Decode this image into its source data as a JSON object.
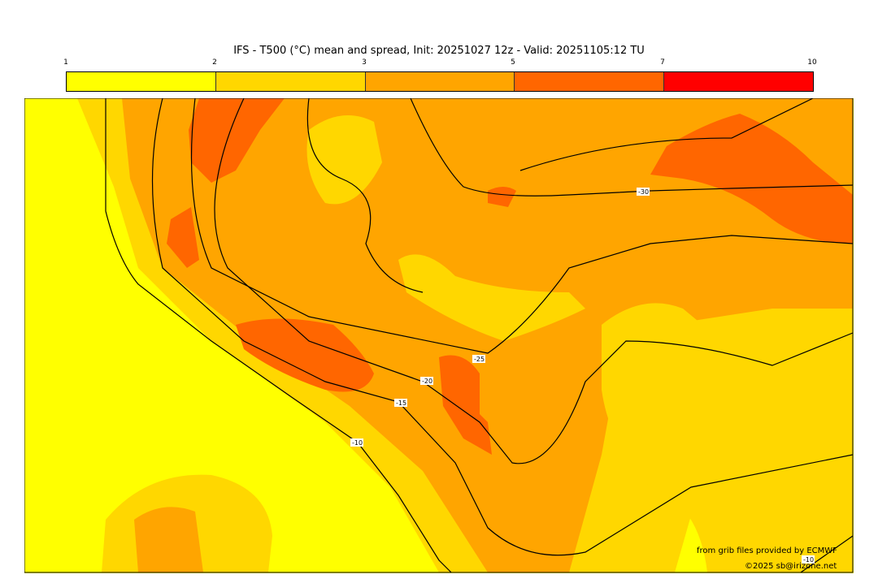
{
  "title": "IFS - T500 (°C) mean and spread, Init: 20251027 12z - Valid: 20251105:12 TU",
  "colorbar": {
    "ticks": [
      "1",
      "2",
      "3",
      "5",
      "7",
      "10"
    ],
    "colors": [
      "#ffff00",
      "#ffd700",
      "#ffa500",
      "#ff6600",
      "#ff0000"
    ]
  },
  "contours": {
    "labels": [
      "-10",
      "-15",
      "-20",
      "-25",
      "-30",
      "-10"
    ]
  },
  "credits": {
    "source": "from grib files provided by ECMWF",
    "copyright": "©2025 sb@irizone.net"
  }
}
